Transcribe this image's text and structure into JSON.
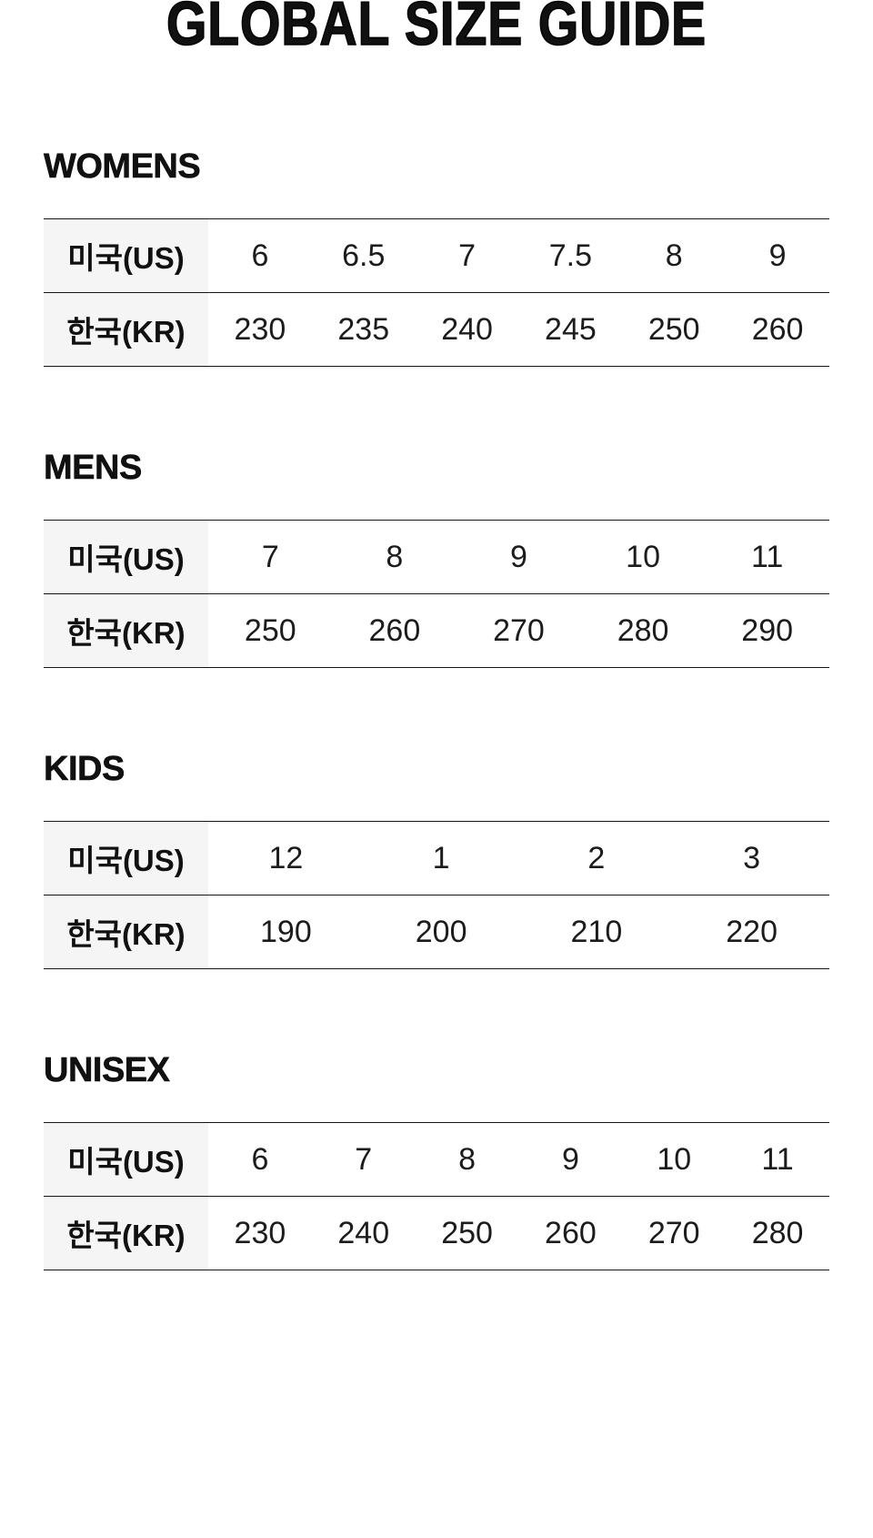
{
  "page": {
    "title": "GLOBAL SIZE GUIDE"
  },
  "row_labels": {
    "us": "미국(US)",
    "kr": "한국(KR)"
  },
  "columns_per_table": 6,
  "sections": [
    {
      "heading": "WOMENS",
      "us": [
        "6",
        "6.5",
        "7",
        "7.5",
        "8",
        "9"
      ],
      "kr": [
        "230",
        "235",
        "240",
        "245",
        "250",
        "260"
      ]
    },
    {
      "heading": "MENS",
      "us": [
        "7",
        "8",
        "9",
        "10",
        "11",
        ""
      ],
      "kr": [
        "250",
        "260",
        "270",
        "280",
        "290",
        ""
      ]
    },
    {
      "heading": "KIDS",
      "us": [
        "12",
        "1",
        "2",
        "3",
        "",
        ""
      ],
      "kr": [
        "190",
        "200",
        "210",
        "220",
        "",
        ""
      ]
    },
    {
      "heading": "UNISEX",
      "us": [
        "6",
        "7",
        "8",
        "9",
        "10",
        "11"
      ],
      "kr": [
        "230",
        "240",
        "250",
        "260",
        "270",
        "280"
      ]
    }
  ],
  "colors": {
    "text": "#111111",
    "cell_text": "#1c1c1c",
    "label_column_background": "#f5f5f5",
    "table_border": "#161616",
    "page_background": "#ffffff"
  }
}
